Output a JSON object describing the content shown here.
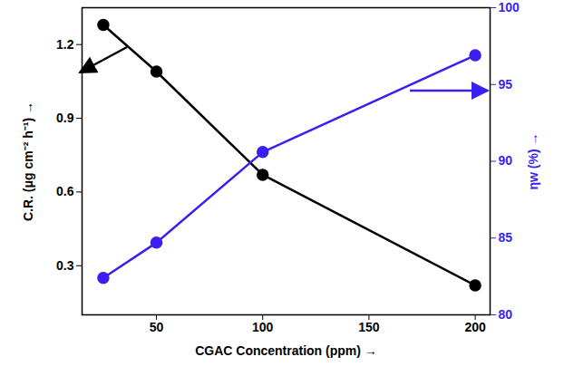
{
  "chart_data": {
    "type": "line",
    "xlabel": "CGAC Concentration (ppm)",
    "ylabel": "C.R. (μg cm⁻² h⁻¹)",
    "y2label": "ηw (%)",
    "x": [
      25,
      50,
      100,
      200
    ],
    "xlim": [
      15,
      207
    ],
    "xticks": [
      50,
      100,
      150,
      200
    ],
    "ylim": [
      0.1,
      1.35
    ],
    "yticks": [
      0.3,
      0.6,
      0.9,
      1.2
    ],
    "y2lim": [
      80,
      100
    ],
    "y2ticks": [
      80,
      85,
      90,
      95,
      100
    ],
    "grid": false,
    "series": [
      {
        "color": "#000000",
        "marker": "circle",
        "values": [
          1.28,
          1.09,
          0.67,
          0.22
        ]
      },
      {
        "color": "#3a1ff0",
        "marker": "circle",
        "axis": "y2",
        "values": [
          82.4,
          84.7,
          90.6,
          96.9
        ]
      }
    ]
  }
}
